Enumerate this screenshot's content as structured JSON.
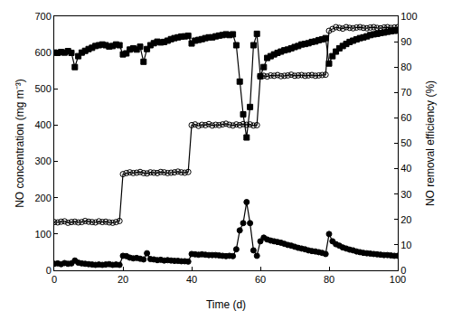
{
  "chart_data": {
    "type": "line",
    "x_label": "Time (d)",
    "y_label": "NO concentration (mg m⁻³)",
    "y2_label": "NO removal efficiency (%)",
    "x": [
      0,
      1,
      2,
      3,
      4,
      5,
      6,
      7,
      8,
      9,
      10,
      11,
      12,
      13,
      14,
      15,
      16,
      17,
      18,
      19,
      20,
      21,
      22,
      23,
      24,
      25,
      26,
      27,
      28,
      29,
      30,
      31,
      32,
      33,
      34,
      35,
      36,
      37,
      38,
      39,
      40,
      41,
      42,
      43,
      44,
      45,
      46,
      47,
      48,
      49,
      50,
      51,
      52,
      53,
      54,
      55,
      56,
      57,
      58,
      59,
      60,
      61,
      62,
      63,
      64,
      65,
      66,
      67,
      68,
      69,
      70,
      71,
      72,
      73,
      74,
      75,
      76,
      77,
      78,
      79,
      80,
      81,
      82,
      83,
      84,
      85,
      86,
      87,
      88,
      89,
      90,
      91,
      92,
      93,
      94,
      95,
      96,
      97,
      98,
      99,
      100
    ],
    "xlim": [
      0,
      100
    ],
    "xticks": [
      0,
      20,
      40,
      60,
      80,
      100
    ],
    "ylim": [
      0,
      700
    ],
    "yticks": [
      0,
      100,
      200,
      300,
      400,
      500,
      600,
      700
    ],
    "y2lim": [
      0,
      100
    ],
    "y2ticks": [
      0,
      10,
      20,
      30,
      40,
      50,
      60,
      70,
      80,
      90,
      100
    ],
    "grid": false,
    "series": [
      {
        "color": "#000000",
        "marker": "square",
        "line_style": "solid",
        "axis": "y2",
        "values": [
          85.7,
          85.6,
          85.9,
          85.7,
          86.3,
          85.6,
          80.0,
          84.3,
          85.7,
          86.4,
          87.1,
          87.6,
          88.3,
          88.6,
          88.9,
          88.6,
          88.1,
          88.3,
          88.9,
          88.6,
          85.0,
          85.4,
          86.9,
          87.4,
          86.9,
          88.0,
          82.1,
          87.1,
          88.6,
          89.4,
          90.0,
          89.7,
          89.9,
          90.4,
          91.0,
          91.4,
          91.7,
          92.0,
          92.1,
          92.3,
          89.3,
          90.4,
          90.7,
          91.0,
          91.4,
          91.7,
          91.7,
          92.1,
          92.4,
          92.6,
          92.9,
          92.6,
          92.9,
          88.6,
          74.3,
          61.4,
          52.3,
          64.3,
          88.6,
          93.1,
          76.4,
          80.0,
          83.6,
          84.3,
          85.0,
          85.6,
          86.1,
          86.6,
          86.9,
          87.4,
          87.9,
          88.3,
          88.9,
          89.1,
          89.4,
          89.9,
          90.1,
          90.6,
          90.9,
          91.4,
          81.4,
          84.3,
          86.1,
          87.4,
          88.3,
          89.1,
          89.9,
          90.4,
          90.9,
          91.4,
          91.7,
          92.1,
          92.6,
          92.9,
          93.1,
          93.4,
          93.6,
          93.9,
          94.1,
          94.3,
          94.4
        ]
      },
      {
        "color": "#000000",
        "marker": "circle-open",
        "line_style": "solid",
        "values": [
          133,
          132,
          134,
          135,
          131,
          133,
          134,
          132,
          133,
          136,
          134,
          133,
          132,
          135,
          133,
          134,
          132,
          131,
          133,
          136,
          265,
          268,
          270,
          268,
          269,
          271,
          268,
          267,
          270,
          269,
          268,
          271,
          270,
          268,
          269,
          270,
          272,
          270,
          269,
          271,
          400,
          402,
          398,
          401,
          400,
          403,
          399,
          401,
          400,
          402,
          404,
          401,
          399,
          402,
          400,
          403,
          401,
          402,
          399,
          400,
          535,
          536,
          534,
          537,
          536,
          538,
          535,
          536,
          537,
          539,
          536,
          537,
          538,
          536,
          537,
          538,
          536,
          537,
          538,
          539,
          660,
          665,
          670,
          668,
          666,
          670,
          668,
          667,
          669,
          670,
          668,
          667,
          669,
          670,
          668,
          667,
          669,
          670,
          668,
          669,
          670
        ]
      },
      {
        "color": "#000000",
        "marker": "circle",
        "line_style": "solid",
        "values": [
          18,
          19,
          17,
          20,
          18,
          19,
          27,
          21,
          19,
          18,
          17,
          16,
          15,
          16,
          15,
          16,
          17,
          15,
          16,
          15,
          40,
          39,
          35,
          33,
          34,
          32,
          30,
          47,
          31,
          30,
          28,
          29,
          27,
          28,
          27,
          26,
          26,
          25,
          25,
          24,
          45,
          44,
          43,
          44,
          43,
          42,
          42,
          42,
          41,
          40,
          39,
          40,
          39,
          58,
          110,
          130,
          188,
          130,
          55,
          40,
          80,
          90,
          85,
          82,
          80,
          78,
          76,
          73,
          70,
          68,
          65,
          62,
          60,
          58,
          55,
          53,
          52,
          50,
          48,
          45,
          100,
          80,
          72,
          68,
          63,
          60,
          57,
          55,
          52,
          50,
          48,
          47,
          46,
          45,
          44,
          43,
          42,
          42,
          41,
          40,
          40
        ]
      }
    ]
  }
}
